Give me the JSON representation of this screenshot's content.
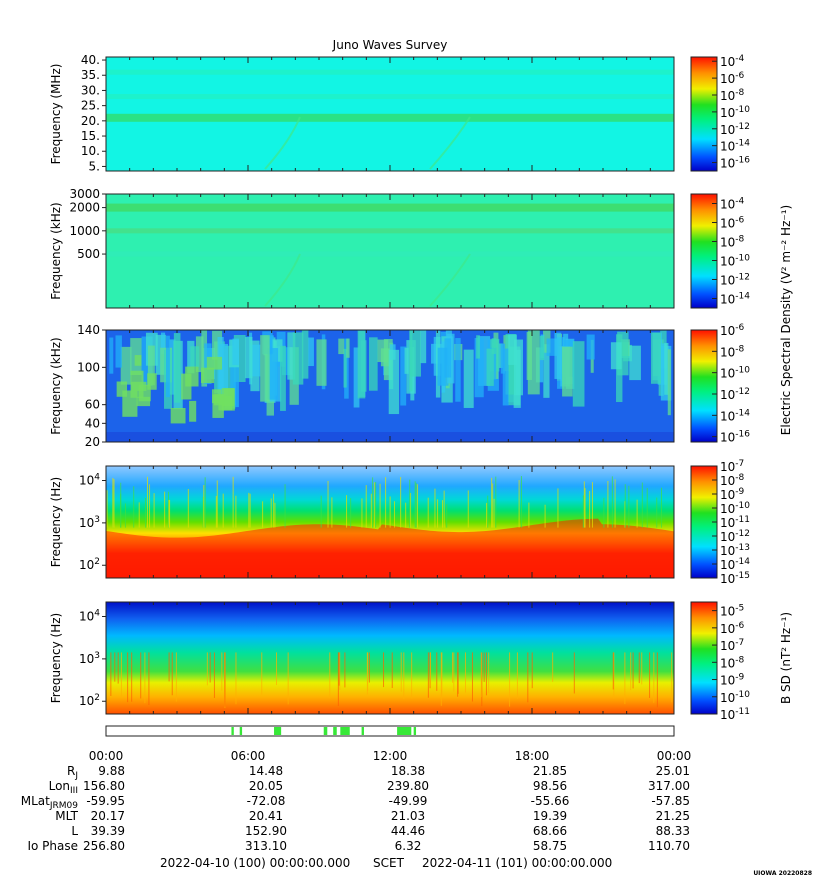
{
  "title": "Juno Waves Survey",
  "credit": "UIOWA 20220828",
  "chart_data": [
    {
      "type": "heatmap",
      "panel": "high-frequency",
      "ylabel": "Frequency (MHz)",
      "ylim": [
        3.5,
        41
      ],
      "yticks": [
        "40.",
        "35.",
        "30.",
        "25.",
        "20.",
        "15.",
        "10.",
        "5."
      ],
      "ytick_values": [
        40,
        35,
        30,
        25,
        20,
        15,
        10,
        5
      ],
      "colorbar_ticks": [
        -4,
        -6,
        -8,
        -10,
        -12,
        -14,
        -16
      ],
      "colorbar_range": [
        -17,
        -3.5
      ],
      "background": "#12f5e4",
      "bands": [
        {
          "y": 21,
          "color": "#2ee07a"
        },
        {
          "y": 36,
          "color": "#1ff2c8"
        },
        {
          "y": 28,
          "color": "#1ff2c8"
        }
      ]
    },
    {
      "type": "heatmap",
      "panel": "medium-frequency",
      "ylabel": "Frequency (kHz)",
      "ylim": [
        100,
        3000
      ],
      "yticks": [
        "3000",
        "2000",
        "1000",
        "500"
      ],
      "ytick_values": [
        3000,
        2000,
        1000,
        500
      ],
      "colorbar_label": "Electric Spectral Density (V² m⁻² Hz⁻¹)",
      "colorbar_ticks": [
        -4,
        -6,
        -8,
        -10,
        -12,
        -14
      ],
      "colorbar_range": [
        -15,
        -3
      ],
      "background": "#2ef0b0",
      "bands": [
        {
          "y": 2000,
          "color": "#3fdc6a"
        },
        {
          "y": 1000,
          "color": "#45e08a"
        },
        {
          "y": 500,
          "color": "#30ecb8"
        }
      ]
    },
    {
      "type": "heatmap",
      "panel": "low-frequency",
      "ylabel": "Frequency (kHz)",
      "ylim": [
        20,
        140
      ],
      "yticks": [
        "140",
        "100",
        "60",
        "40",
        "20"
      ],
      "ytick_values": [
        140,
        100,
        60,
        40,
        20
      ],
      "colorbar_ticks": [
        -6,
        -8,
        -10,
        -12,
        -14,
        -16
      ],
      "colorbar_range": [
        -16.5,
        -6
      ],
      "background": "#1c63ea"
    },
    {
      "type": "heatmap",
      "panel": "electric-waveform",
      "ylabel": "Frequency (Hz)",
      "ylim": [
        50,
        22000
      ],
      "yticks": [
        {
          "base": "10",
          "exp": "4"
        },
        {
          "base": "10",
          "exp": "3"
        },
        {
          "base": "10",
          "exp": "2"
        }
      ],
      "ytick_values": [
        10000,
        1000,
        100
      ],
      "colorbar_ticks": [
        -7,
        -8,
        -9,
        -10,
        -11,
        -12,
        -13,
        -14,
        -15
      ],
      "colorbar_range": [
        -15,
        -7
      ]
    },
    {
      "type": "heatmap",
      "panel": "magnetic-waveform",
      "ylabel": "Frequency (Hz)",
      "ylim": [
        50,
        22000
      ],
      "yticks": [
        {
          "base": "10",
          "exp": "4"
        },
        {
          "base": "10",
          "exp": "3"
        },
        {
          "base": "10",
          "exp": "2"
        }
      ],
      "ytick_values": [
        10000,
        1000,
        100
      ],
      "colorbar_label": "B SD (nT² Hz⁻¹)",
      "colorbar_ticks": [
        -5,
        -6,
        -7,
        -8,
        -9,
        -10,
        -11
      ],
      "colorbar_range": [
        -11,
        -4.5
      ]
    }
  ],
  "flag_bar": {
    "color": "#37e837",
    "segments_hours": [
      [
        5.3,
        5.4
      ],
      [
        5.65,
        5.75
      ],
      [
        7.1,
        7.4
      ],
      [
        9.2,
        9.35
      ],
      [
        9.6,
        9.75
      ],
      [
        9.9,
        10.3
      ],
      [
        10.8,
        10.9
      ],
      [
        12.3,
        12.9
      ],
      [
        13.0,
        13.1
      ]
    ]
  },
  "time_axis": {
    "range_hours": [
      0,
      24
    ],
    "ticks": [
      "00:00",
      "06:00",
      "12:00",
      "18:00",
      "00:00"
    ],
    "tick_hours": [
      0,
      6,
      12,
      18,
      24
    ]
  },
  "ephemeris": {
    "rows": [
      {
        "label": "R",
        "sub": "J",
        "values": [
          "9.88",
          "14.48",
          "18.38",
          "21.85",
          "25.01"
        ]
      },
      {
        "label": "Lon",
        "sub": "III",
        "values": [
          "156.80",
          "20.05",
          "239.80",
          "98.56",
          "317.00"
        ]
      },
      {
        "label": "MLat",
        "sub": "JRM09",
        "values": [
          "-59.95",
          "-72.08",
          "-49.99",
          "-55.66",
          "-57.85"
        ]
      },
      {
        "label": "MLT",
        "sub": "",
        "values": [
          "20.17",
          "20.41",
          "21.03",
          "19.39",
          "21.25"
        ]
      },
      {
        "label": "L",
        "sub": "",
        "values": [
          "39.39",
          "152.90",
          "44.46",
          "68.66",
          "88.33"
        ]
      },
      {
        "label": "Io Phase",
        "sub": "",
        "values": [
          "256.80",
          "313.10",
          "6.32",
          "58.75",
          "110.70"
        ]
      }
    ]
  },
  "footer": {
    "start": "2022-04-10 (100) 00:00:00.000",
    "label": "SCET",
    "end": "2022-04-11 (101) 00:00:00.000"
  }
}
